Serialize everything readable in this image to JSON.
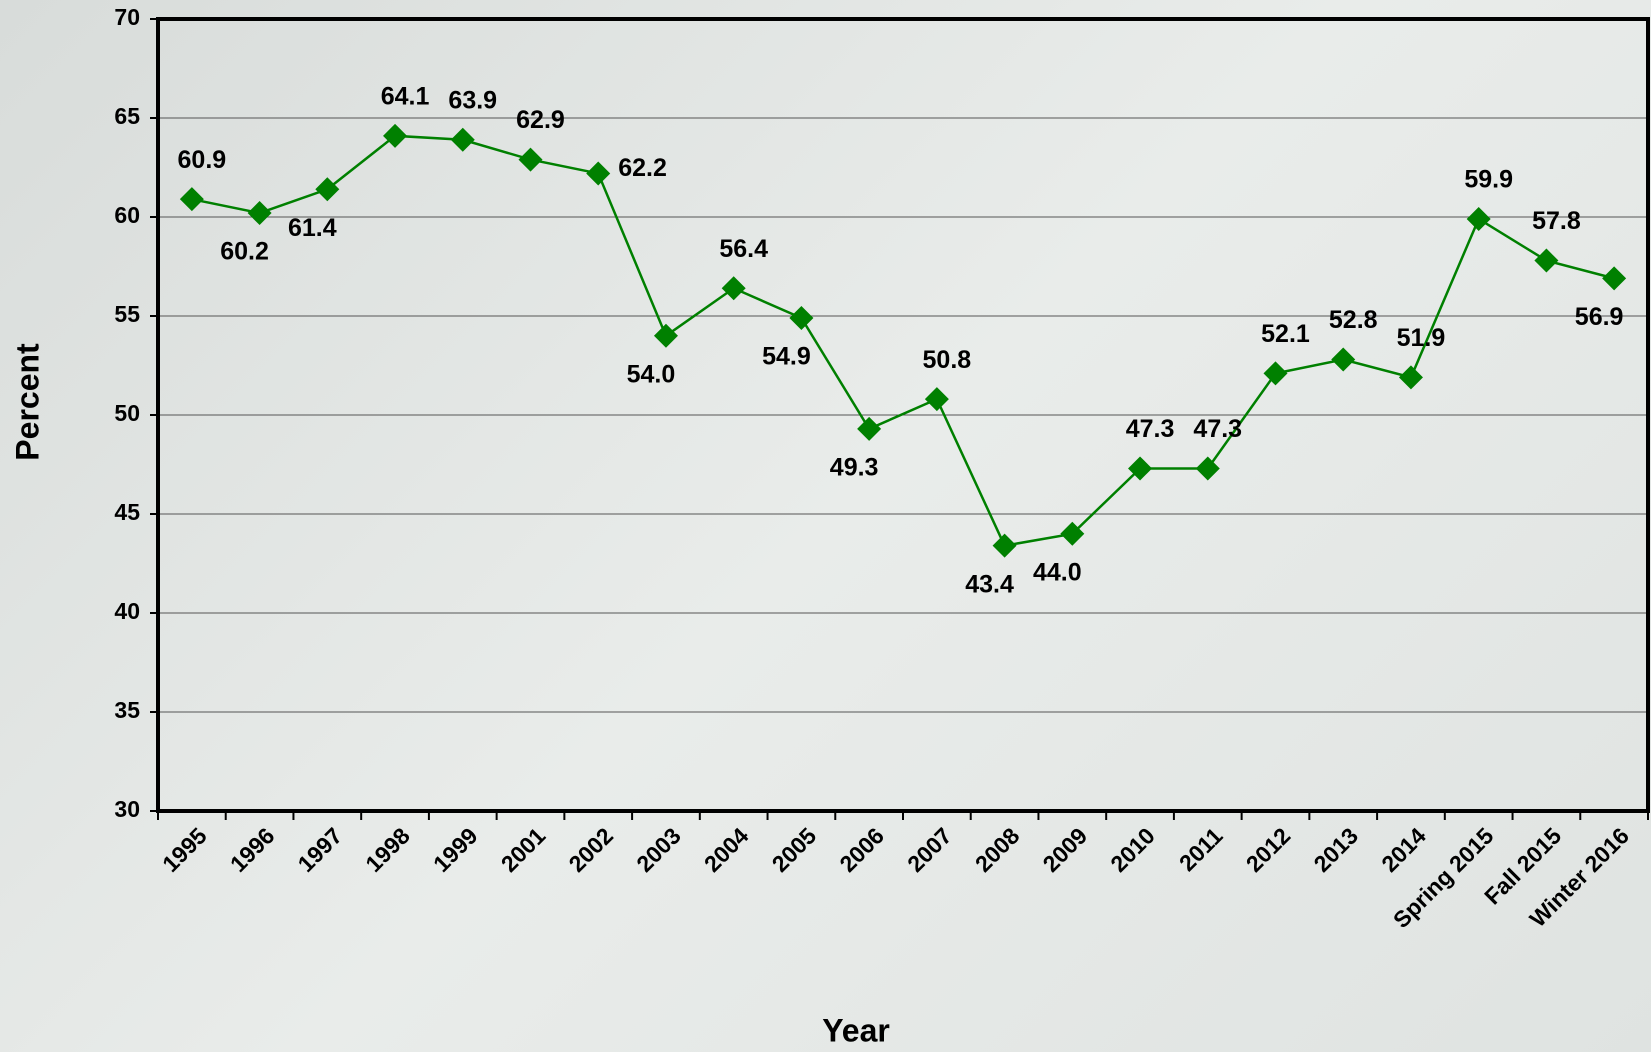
{
  "chart_data": {
    "type": "line",
    "x_label": "Year",
    "y_label": "Percent",
    "categories": [
      "1995",
      "1996",
      "1997",
      "1998",
      "1999",
      "2001",
      "2002",
      "2003",
      "2004",
      "2005",
      "2006",
      "2007",
      "2008",
      "2009",
      "2010",
      "2011",
      "2012",
      "2013",
      "2014",
      "Spring 2015",
      "Fall 2015",
      "Winter 2016"
    ],
    "series": [
      {
        "color": "#008000",
        "values": [
          60.9,
          60.2,
          61.4,
          64.1,
          63.9,
          62.9,
          62.2,
          54.0,
          56.4,
          54.9,
          49.3,
          50.8,
          43.4,
          44.0,
          47.3,
          47.3,
          52.1,
          52.8,
          51.9,
          59.9,
          57.8,
          56.9
        ],
        "value_labels": [
          "60.9",
          "60.2",
          "61.4",
          "64.1",
          "63.9",
          "62.9",
          "62.2",
          "54.0",
          "56.4",
          "54.9",
          "49.3",
          "50.8",
          "43.4",
          "44.0",
          "47.3",
          "47.3",
          "52.1",
          "52.8",
          "51.9",
          "59.9",
          "57.8",
          "56.9"
        ]
      }
    ],
    "ylim": [
      30,
      70
    ],
    "yticks": [
      30,
      35,
      40,
      45,
      50,
      55,
      60,
      65,
      70
    ],
    "grid": true
  }
}
